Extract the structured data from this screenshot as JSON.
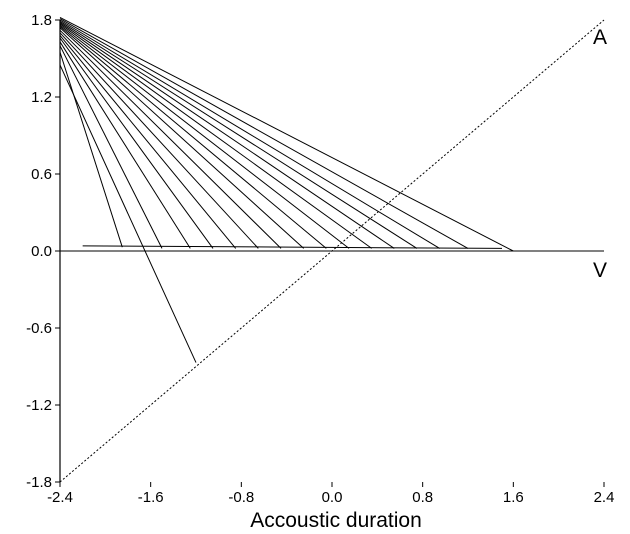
{
  "chart_data": {
    "type": "line",
    "title": "",
    "xlabel": "Accoustic duration",
    "ylabel": "",
    "xlim": [
      -2.4,
      2.4
    ],
    "ylim": [
      -1.8,
      1.8
    ],
    "x_ticks": [
      -2.4,
      -1.6,
      -0.8,
      0.0,
      0.8,
      1.6,
      2.4
    ],
    "x_tick_labels": [
      "-2.4",
      "-1.6",
      "-0.8",
      "0.0",
      "0.8",
      "1.6",
      "2.4"
    ],
    "y_ticks": [
      1.8,
      1.2,
      0.6,
      0.0,
      -0.6,
      -1.2,
      -1.8
    ],
    "y_tick_labels": [
      "1.8",
      "1.2",
      "0.6",
      "0.0",
      "-0.6",
      "-1.2",
      "-1.8"
    ],
    "grid": false,
    "legend": "none",
    "line_labels": {
      "A": "A",
      "V": "V"
    },
    "reference_lines": [
      {
        "id": "A",
        "style": "dotted",
        "points": [
          [
            -2.4,
            -1.8
          ],
          [
            2.4,
            1.8
          ]
        ]
      },
      {
        "id": "V",
        "style": "solid",
        "points": [
          [
            -2.4,
            0.0
          ],
          [
            2.4,
            0.0
          ]
        ]
      }
    ],
    "series": [
      {
        "points": [
          [
            -2.4,
            1.45
          ],
          [
            -1.2,
            -0.87
          ]
        ]
      },
      {
        "points": [
          [
            -2.4,
            1.55
          ],
          [
            -1.85,
            0.03
          ]
        ]
      },
      {
        "points": [
          [
            -2.4,
            1.6
          ],
          [
            -1.5,
            0.02
          ]
        ]
      },
      {
        "points": [
          [
            -2.4,
            1.63
          ],
          [
            -1.25,
            0.02
          ]
        ]
      },
      {
        "points": [
          [
            -2.4,
            1.66
          ],
          [
            -1.05,
            0.02
          ]
        ]
      },
      {
        "points": [
          [
            -2.4,
            1.68
          ],
          [
            -0.85,
            0.02
          ]
        ]
      },
      {
        "points": [
          [
            -2.4,
            1.7
          ],
          [
            -0.65,
            0.02
          ]
        ]
      },
      {
        "points": [
          [
            -2.4,
            1.72
          ],
          [
            -0.45,
            0.02
          ]
        ]
      },
      {
        "points": [
          [
            -2.4,
            1.74
          ],
          [
            -0.25,
            0.02
          ]
        ]
      },
      {
        "points": [
          [
            -2.4,
            1.75
          ],
          [
            -0.05,
            0.02
          ]
        ]
      },
      {
        "points": [
          [
            -2.4,
            1.76
          ],
          [
            0.15,
            0.02
          ]
        ]
      },
      {
        "points": [
          [
            -2.4,
            1.77
          ],
          [
            0.35,
            0.02
          ]
        ]
      },
      {
        "points": [
          [
            -2.4,
            1.78
          ],
          [
            0.55,
            0.02
          ]
        ]
      },
      {
        "points": [
          [
            -2.4,
            1.79
          ],
          [
            0.75,
            0.02
          ]
        ]
      },
      {
        "points": [
          [
            -2.4,
            1.8
          ],
          [
            0.95,
            0.02
          ]
        ]
      },
      {
        "points": [
          [
            -2.4,
            1.81
          ],
          [
            1.2,
            0.02
          ]
        ]
      },
      {
        "points": [
          [
            -2.4,
            1.82
          ],
          [
            1.6,
            0.0
          ]
        ]
      }
    ],
    "baseline_segment": {
      "points": [
        [
          -2.2,
          0.04
        ],
        [
          1.5,
          0.02
        ]
      ]
    }
  }
}
